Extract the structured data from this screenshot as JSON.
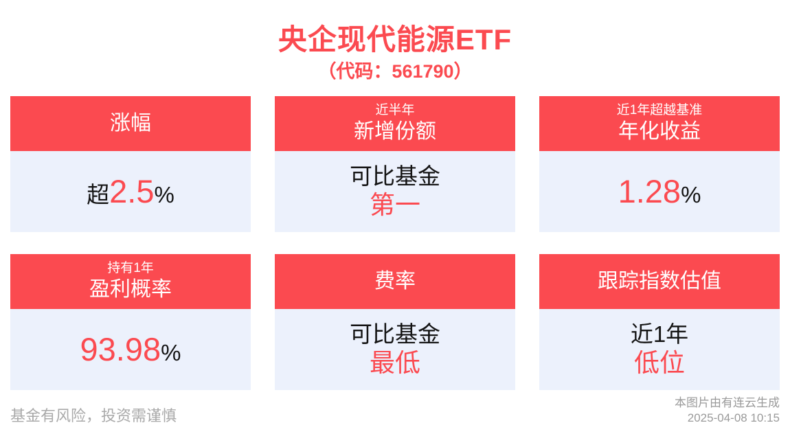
{
  "title": "央企现代能源ETF",
  "subtitle": "（代码：561790）",
  "colors": {
    "accent_red": "#FB4A50",
    "card_body_bg": "#ECF1FC",
    "dark_text": "#141414",
    "footer_gray": "#A9A9A9"
  },
  "cards": [
    {
      "name": "price-change",
      "header_small": "",
      "header_main": "涨幅",
      "value_prefix": "超",
      "value_number": "2.5",
      "value_suffix": "%"
    },
    {
      "name": "new-shares",
      "header_small": "近半年",
      "header_main": "新增份额",
      "line1": "可比基金",
      "line2": "第一"
    },
    {
      "name": "annualized-return",
      "header_small": "近1年超越基准",
      "header_main": "年化收益",
      "value_number": "1.28",
      "value_suffix": "%"
    },
    {
      "name": "profit-probability",
      "header_small": "持有1年",
      "header_main": "盈利概率",
      "value_number": "93.98",
      "value_suffix": "%"
    },
    {
      "name": "fee-rate",
      "header_small": "",
      "header_main": "费率",
      "line1": "可比基金",
      "line2": "最低"
    },
    {
      "name": "index-valuation",
      "header_small": "",
      "header_main": "跟踪指数估值",
      "line1": "近1年",
      "line2": "低位"
    }
  ],
  "footer": {
    "risk_notice": "基金有风险，投资需谨慎",
    "generator_credit": "本图片由有连云生成",
    "timestamp": "2025-04-08 10:15"
  }
}
